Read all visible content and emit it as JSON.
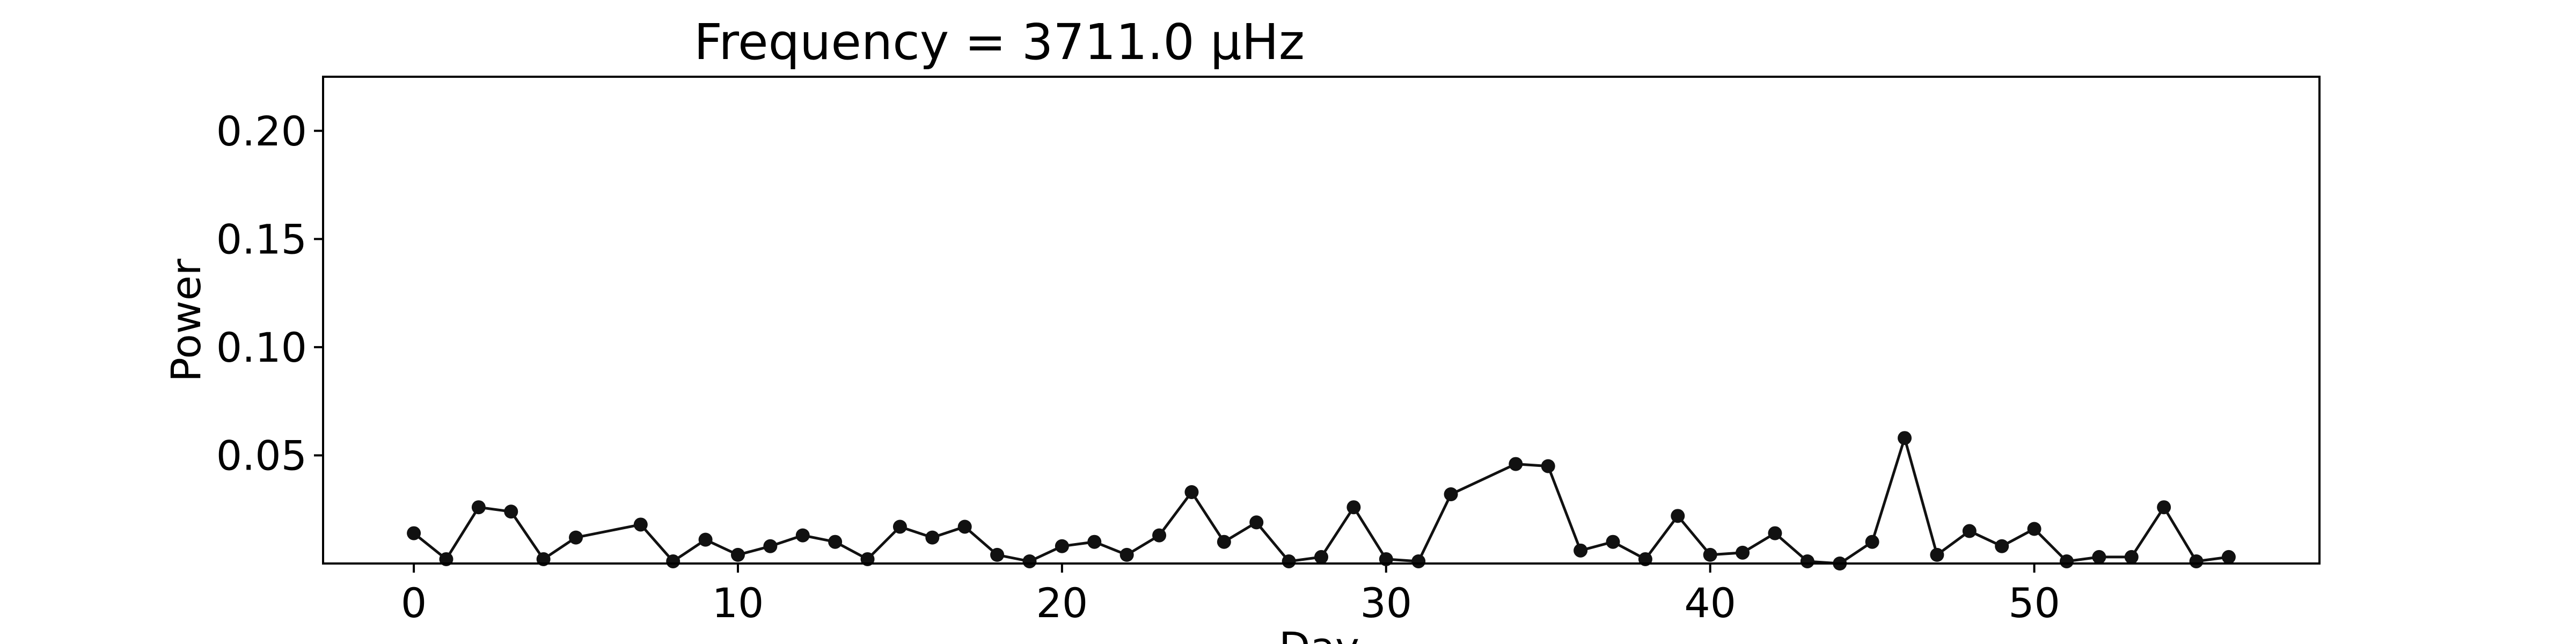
{
  "chart_data": {
    "type": "line",
    "title": "Frequency = 3711.0 μHz",
    "xlabel": "Day",
    "ylabel": "Power",
    "xlim": [
      -2.8,
      58.8
    ],
    "ylim": [
      0,
      0.225
    ],
    "x_ticks": [
      0,
      10,
      20,
      30,
      40,
      50
    ],
    "y_ticks": [
      0.05,
      0.1,
      0.15,
      0.2
    ],
    "y_tick_labels": [
      "0.05",
      "0.10",
      "0.15",
      "0.20"
    ],
    "grid": false,
    "series": [
      {
        "color": "#111111",
        "marker": "circle",
        "x": [
          0,
          1,
          2,
          3,
          4,
          5,
          7,
          8,
          9,
          10,
          11,
          12,
          13,
          14,
          15,
          16,
          17,
          18,
          19,
          20,
          21,
          22,
          23,
          24,
          25,
          26,
          27,
          28,
          29,
          30,
          31,
          32,
          34,
          35,
          36,
          37,
          38,
          39,
          40,
          41,
          42,
          43,
          44,
          45,
          46,
          47,
          48,
          49,
          50,
          51,
          52,
          53,
          54,
          55,
          56
        ],
        "y": [
          0.014,
          0.002,
          0.026,
          0.024,
          0.002,
          0.012,
          0.018,
          0.001,
          0.011,
          0.004,
          0.008,
          0.013,
          0.01,
          0.002,
          0.017,
          0.012,
          0.017,
          0.004,
          0.001,
          0.008,
          0.01,
          0.004,
          0.013,
          0.033,
          0.01,
          0.019,
          0.001,
          0.003,
          0.026,
          0.002,
          0.001,
          0.032,
          0.046,
          0.045,
          0.006,
          0.01,
          0.002,
          0.022,
          0.004,
          0.005,
          0.014,
          0.001,
          0.0,
          0.01,
          0.058,
          0.004,
          0.015,
          0.008,
          0.016,
          0.001,
          0.003,
          0.003,
          0.026,
          0.001,
          0.003
        ]
      }
    ]
  }
}
